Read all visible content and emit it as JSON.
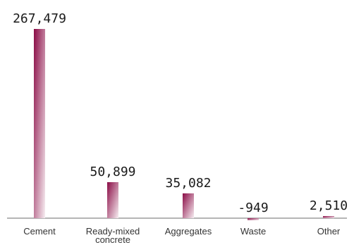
{
  "chart_data": {
    "type": "bar",
    "categories": [
      [
        "Cement"
      ],
      [
        "Ready-mixed",
        "concrete"
      ],
      [
        "Aggregates"
      ],
      [
        "Waste"
      ],
      [
        "Other"
      ]
    ],
    "values": [
      267479,
      50899,
      35082,
      -949,
      2510
    ],
    "value_labels": [
      "267,479",
      "50,899",
      "35,082",
      "-949",
      "2,510"
    ],
    "ylim": [
      -3000,
      270000
    ],
    "grid": false,
    "bar_color": "#8a0b45"
  }
}
